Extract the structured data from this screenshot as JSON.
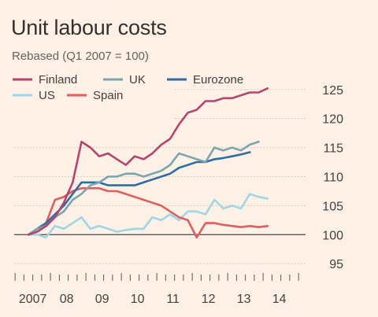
{
  "title": "Unit labour costs",
  "subtitle": "Rebased (Q1 2007 = 100)",
  "chart_data": {
    "type": "line",
    "title": "Unit labour costs",
    "subtitle": "Rebased (Q1 2007 = 100)",
    "xlabel": "",
    "ylabel": "",
    "x_start": "2007 Q1",
    "x_tick_labels": [
      "2007",
      "08",
      "09",
      "10",
      "11",
      "12",
      "13",
      "14"
    ],
    "y_ticks": [
      95,
      100,
      105,
      110,
      115,
      120,
      125
    ],
    "ylim": [
      93,
      127
    ],
    "grid": "horizontal dotted",
    "legend_placement": "top-left",
    "series": [
      {
        "name": "Finland",
        "color": "#b5446e",
        "values": [
          100,
          100.5,
          101.5,
          103,
          105.5,
          109,
          116,
          115,
          113.5,
          114,
          113,
          112,
          113.5,
          113,
          114,
          115.5,
          116.5,
          119,
          121,
          121.5,
          123,
          123,
          123.5,
          123.5,
          124,
          124.5,
          124.5,
          125.2
        ]
      },
      {
        "name": "UK",
        "color": "#78a6ac",
        "values": [
          100,
          101,
          101.5,
          103,
          104,
          106,
          107,
          108.5,
          109,
          110,
          110,
          110.5,
          110.5,
          110,
          110.5,
          111,
          112,
          114,
          113.5,
          113,
          112.5,
          115,
          114.5,
          115,
          114.5,
          115.5,
          116
        ]
      },
      {
        "name": "Eurozone",
        "color": "#2e6da4",
        "values": [
          100,
          101,
          102,
          103.5,
          105,
          107,
          109,
          109,
          109,
          108.5,
          108.5,
          108.5,
          108.5,
          109,
          109.5,
          110,
          110.5,
          111.5,
          112,
          112.5,
          112.5,
          113,
          113.2,
          113.5,
          113.8,
          114.2
        ]
      },
      {
        "name": "US",
        "color": "#9fd6e6",
        "values": [
          100,
          100,
          99.5,
          101.5,
          101,
          102,
          103,
          101,
          101.5,
          101,
          100.5,
          100.8,
          101,
          101,
          103,
          102.5,
          103.5,
          102.5,
          104,
          104,
          103.5,
          106,
          104.5,
          105,
          104.5,
          107,
          106.5,
          106.2
        ]
      },
      {
        "name": "Spain",
        "color": "#e05e5e",
        "values": [
          100,
          101,
          102,
          106,
          106.5,
          107.5,
          108,
          108,
          108,
          107.5,
          107.5,
          107,
          106.5,
          106,
          105.5,
          105,
          104,
          103,
          102.5,
          99.5,
          102,
          102,
          101.7,
          101.5,
          101.3,
          101.5,
          101.3,
          101.5
        ]
      }
    ],
    "legend_order": [
      "Finland",
      "UK",
      "Eurozone",
      "US",
      "Spain"
    ]
  }
}
